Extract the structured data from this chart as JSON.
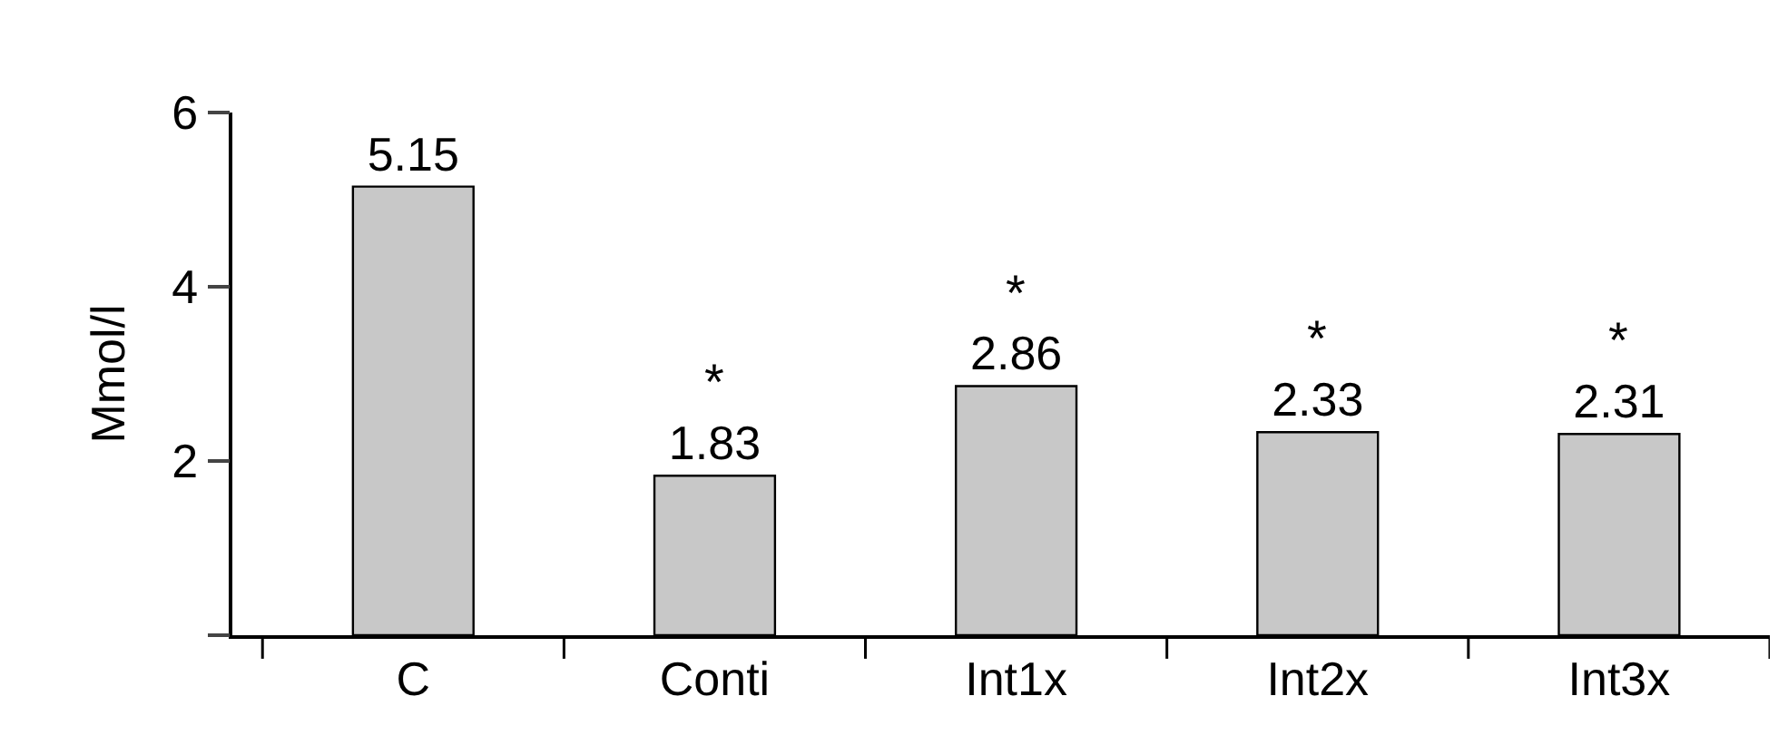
{
  "chart_data": {
    "type": "bar",
    "ylabel": "Mmol/l",
    "categories": [
      "C",
      "Conti",
      "Int1x",
      "Int2x",
      "Int3x"
    ],
    "values": [
      5.15,
      1.83,
      2.86,
      2.33,
      2.31
    ],
    "color": "#c8c8c8",
    "ylim": [
      0,
      6
    ],
    "yticks": [
      {
        "value": 0,
        "label": null
      },
      2,
      4,
      6
    ],
    "data_labels": true,
    "grid": false,
    "annotations": [
      {
        "text": "*",
        "x": "Conti",
        "y": 1.83
      },
      {
        "text": "*",
        "x": "Int1x",
        "y": 2.86
      },
      {
        "text": "*",
        "x": "Int2x",
        "y": 2.33
      },
      {
        "text": "*",
        "x": "Int3x",
        "y": 2.31
      }
    ]
  }
}
